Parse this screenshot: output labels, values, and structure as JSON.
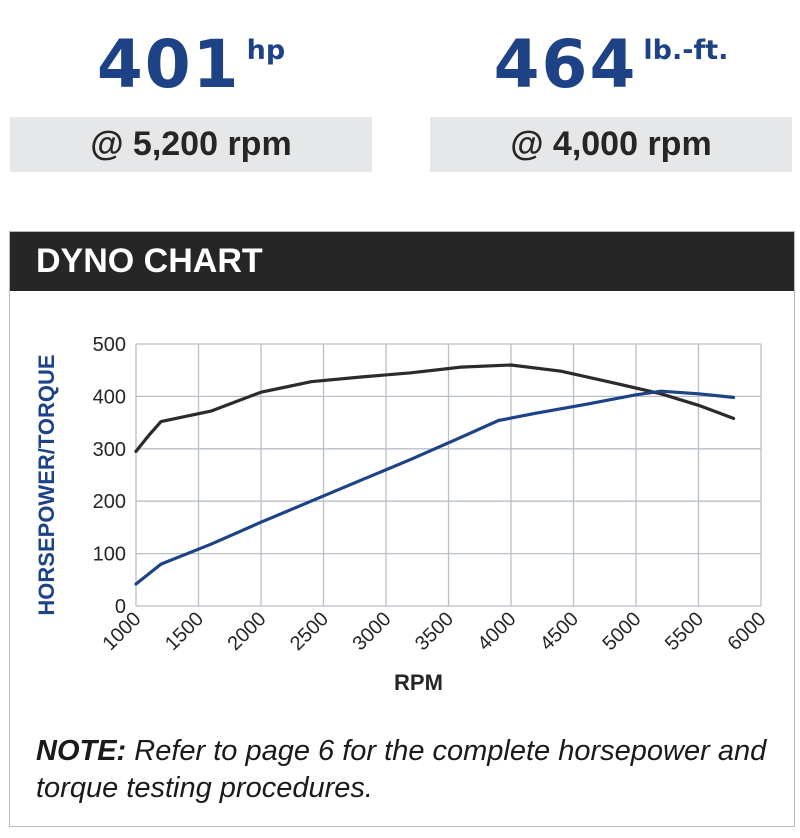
{
  "stats": {
    "horsepower": {
      "value": "401",
      "unit": "hp",
      "at": "@ 5,200 rpm"
    },
    "torque": {
      "value": "464",
      "unit": "lb.-ft.",
      "at": "@ 4,000 rpm"
    }
  },
  "panel": {
    "title": "DYNO CHART",
    "note_label": "NOTE:",
    "note_text": " Refer to page 6 for the complete horsepower and torque testing procedures."
  },
  "colors": {
    "brand_blue": "#1d4285",
    "torque_line": "#2b2b2b",
    "header_bg": "#262626",
    "box_bg": "#e6e7e9",
    "grid": "#b9bfc7"
  },
  "chart_data": {
    "type": "line",
    "xlabel": "RPM",
    "ylabel": "HORSEPOWER/TORQUE",
    "xlim": [
      1000,
      6000
    ],
    "ylim": [
      0,
      500
    ],
    "xticks": [
      "1000",
      "1500",
      "2000",
      "2500",
      "3000",
      "3500",
      "4000",
      "4500",
      "5000",
      "5500",
      "6000"
    ],
    "yticks": [
      "0",
      "100",
      "200",
      "300",
      "400",
      "500"
    ],
    "grid": true,
    "series": [
      {
        "color": "#2b2b2b",
        "x": [
          1000,
          1100,
          1200,
          1400,
          1600,
          1800,
          2000,
          2200,
          2400,
          2800,
          3200,
          3600,
          4000,
          4400,
          4800,
          5200,
          5500,
          5780
        ],
        "y": [
          295,
          325,
          352,
          362,
          372,
          390,
          408,
          418,
          428,
          437,
          445,
          456,
          460,
          448,
          427,
          405,
          383,
          358
        ]
      },
      {
        "color": "#1d4285",
        "x": [
          1000,
          1200,
          1600,
          2000,
          2400,
          2800,
          3200,
          3600,
          3900,
          4200,
          4600,
          5000,
          5200,
          5500,
          5780
        ],
        "y": [
          42,
          80,
          118,
          160,
          200,
          240,
          280,
          322,
          354,
          368,
          385,
          403,
          410,
          405,
          398
        ]
      }
    ]
  }
}
